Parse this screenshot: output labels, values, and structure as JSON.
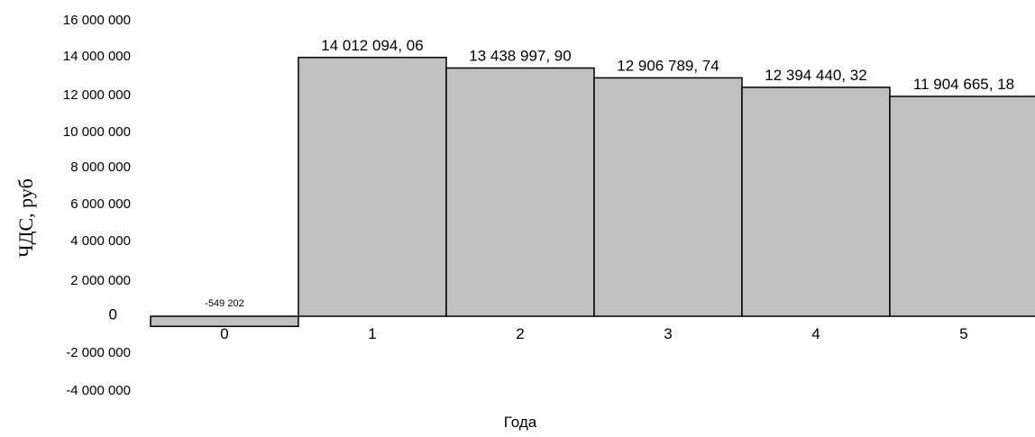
{
  "chart_data": {
    "type": "bar",
    "title": "",
    "xlabel": "Года",
    "ylabel": "ЧДС, руб",
    "categories": [
      "0",
      "1",
      "2",
      "3",
      "4",
      "5"
    ],
    "values": [
      -549202,
      14012094.06,
      13438997.9,
      12906789.74,
      12394440.32,
      11904665.18
    ],
    "data_labels": [
      "-549 202",
      "14 012 094, 06",
      "13 438 997, 90",
      "12 906 789, 74",
      "12 394 440, 32",
      "11 904 665, 18"
    ],
    "y_ticks": [
      16000000,
      14000000,
      12000000,
      10000000,
      8000000,
      6000000,
      4000000,
      2000000,
      0,
      -2000000,
      -4000000
    ],
    "y_tick_labels": [
      "16 000 000",
      "14 000 000",
      "12 000 000",
      "10 000 000",
      "8 000 000",
      "6 000 000",
      "4 000 000",
      "2 000 000",
      "0",
      "-2 000 000",
      "-4 000 000"
    ],
    "ylim": [
      -4000000,
      16000000
    ],
    "grid": false,
    "legend": "none",
    "bar_color": "#c0c0c0",
    "bar_edge_color": "#000000"
  }
}
